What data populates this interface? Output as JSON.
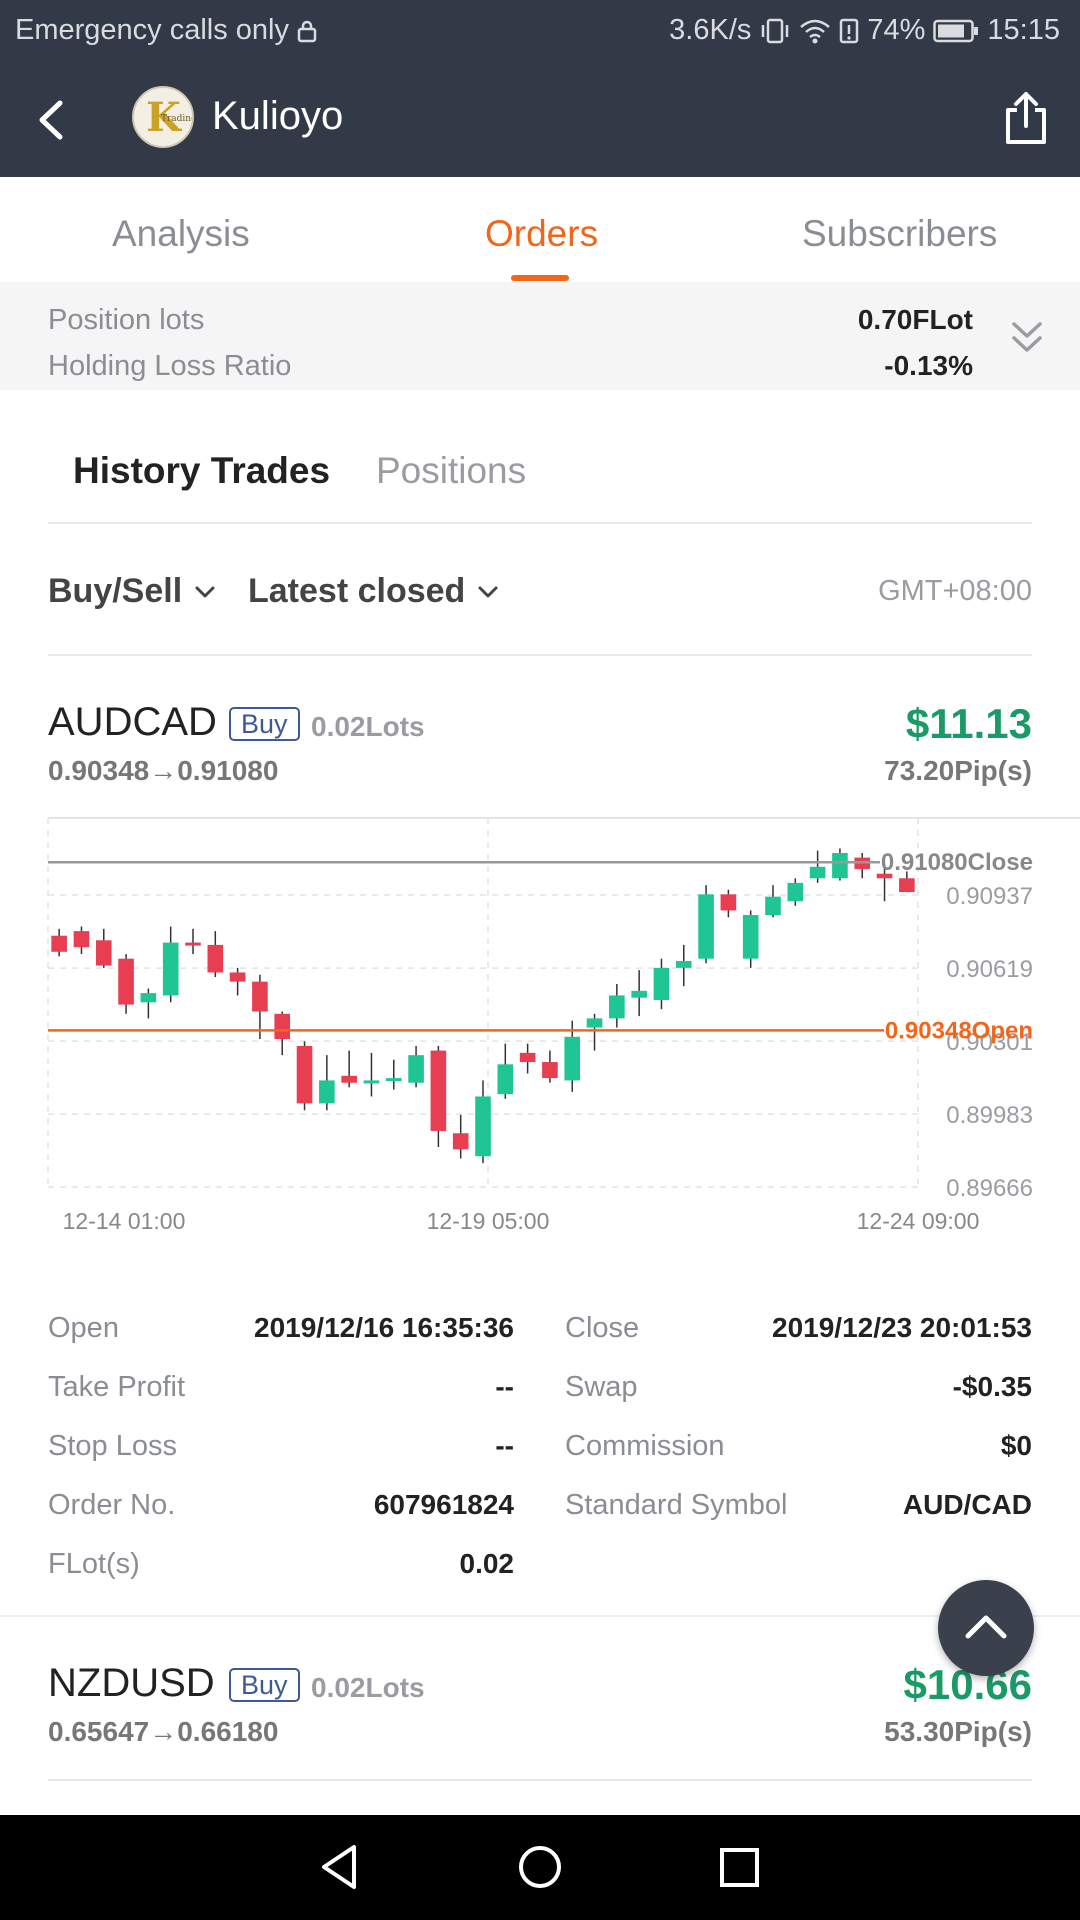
{
  "status_bar": {
    "carrier": "Emergency calls only",
    "speed": "3.6K/s",
    "battery": "74%",
    "time": "15:15"
  },
  "header": {
    "title": "Kulioyo",
    "avatar_text": "Trading"
  },
  "main_tabs": [
    {
      "label": "Analysis"
    },
    {
      "label": "Orders"
    },
    {
      "label": "Subscribers"
    }
  ],
  "summary": {
    "position_lots_label": "Position lots",
    "position_lots_value": "0.70FLot",
    "holding_loss_label": "Holding Loss Ratio",
    "holding_loss_value": "-0.13%"
  },
  "sub_tabs": [
    {
      "label": "History Trades"
    },
    {
      "label": "Positions"
    }
  ],
  "filters": {
    "direction": "Buy/Sell",
    "sort": "Latest closed",
    "timezone": "GMT+08:00"
  },
  "trades": [
    {
      "symbol": "AUDCAD",
      "side": "Buy",
      "lots": "0.02Lots",
      "profit": "$11.13",
      "price_range": "0.90348→0.91080",
      "pips": "73.20Pip(s)"
    },
    {
      "symbol": "NZDUSD",
      "side": "Buy",
      "lots": "0.02Lots",
      "profit": "$10.66",
      "price_range": "0.65647→0.66180",
      "pips": "53.30Pip(s)"
    }
  ],
  "chart_data": {
    "type": "candlestick",
    "y_ticks": [
      0.90937,
      0.90619,
      0.90301,
      0.89983,
      0.89666
    ],
    "x_ticks": [
      "12-14 01:00",
      "12-19 05:00",
      "12-24 09:00"
    ],
    "ylim": [
      0.89666,
      0.91255
    ],
    "close_line": {
      "value": 0.9108,
      "label": "0.91080Close"
    },
    "open_line": {
      "value": 0.90348,
      "label": "0.90348Open"
    },
    "colors": {
      "up": "#1fc594",
      "down": "#e83e52",
      "open_line": "#f2661b",
      "close_line": "#999999"
    },
    "candles": [
      {
        "o": 0.9076,
        "h": 0.9079,
        "l": 0.9067,
        "c": 0.9069
      },
      {
        "o": 0.9078,
        "h": 0.908,
        "l": 0.9068,
        "c": 0.9071
      },
      {
        "o": 0.9074,
        "h": 0.9079,
        "l": 0.9062,
        "c": 0.9063
      },
      {
        "o": 0.9066,
        "h": 0.9068,
        "l": 0.9042,
        "c": 0.9046
      },
      {
        "o": 0.9047,
        "h": 0.9053,
        "l": 0.904,
        "c": 0.9051
      },
      {
        "o": 0.905,
        "h": 0.908,
        "l": 0.9047,
        "c": 0.9073
      },
      {
        "o": 0.9073,
        "h": 0.9079,
        "l": 0.9068,
        "c": 0.9072
      },
      {
        "o": 0.9072,
        "h": 0.9078,
        "l": 0.9058,
        "c": 0.906
      },
      {
        "o": 0.906,
        "h": 0.9062,
        "l": 0.905,
        "c": 0.9056
      },
      {
        "o": 0.9056,
        "h": 0.9059,
        "l": 0.9031,
        "c": 0.9043
      },
      {
        "o": 0.9042,
        "h": 0.9043,
        "l": 0.9024,
        "c": 0.9031
      },
      {
        "o": 0.9028,
        "h": 0.903,
        "l": 0.9,
        "c": 0.9003
      },
      {
        "o": 0.9003,
        "h": 0.9024,
        "l": 0.9,
        "c": 0.9013
      },
      {
        "o": 0.9015,
        "h": 0.9026,
        "l": 0.901,
        "c": 0.9012
      },
      {
        "o": 0.9013,
        "h": 0.9025,
        "l": 0.9006,
        "c": 0.9013
      },
      {
        "o": 0.9013,
        "h": 0.9022,
        "l": 0.9009,
        "c": 0.9014
      },
      {
        "o": 0.9012,
        "h": 0.9028,
        "l": 0.901,
        "c": 0.9024
      },
      {
        "o": 0.9026,
        "h": 0.9028,
        "l": 0.8984,
        "c": 0.8991
      },
      {
        "o": 0.899,
        "h": 0.8998,
        "l": 0.8979,
        "c": 0.8983
      },
      {
        "o": 0.898,
        "h": 0.9013,
        "l": 0.8977,
        "c": 0.9006
      },
      {
        "o": 0.9007,
        "h": 0.9029,
        "l": 0.9005,
        "c": 0.902
      },
      {
        "o": 0.9025,
        "h": 0.9029,
        "l": 0.9016,
        "c": 0.9021
      },
      {
        "o": 0.9021,
        "h": 0.9026,
        "l": 0.9012,
        "c": 0.9014
      },
      {
        "o": 0.9013,
        "h": 0.9039,
        "l": 0.9008,
        "c": 0.9032
      },
      {
        "o": 0.9036,
        "h": 0.9042,
        "l": 0.9026,
        "c": 0.904
      },
      {
        "o": 0.904,
        "h": 0.9055,
        "l": 0.9036,
        "c": 0.905
      },
      {
        "o": 0.9049,
        "h": 0.9061,
        "l": 0.9041,
        "c": 0.9052
      },
      {
        "o": 0.9048,
        "h": 0.9066,
        "l": 0.9044,
        "c": 0.9062
      },
      {
        "o": 0.9062,
        "h": 0.9072,
        "l": 0.9054,
        "c": 0.9065
      },
      {
        "o": 0.9066,
        "h": 0.9098,
        "l": 0.9064,
        "c": 0.9094
      },
      {
        "o": 0.9094,
        "h": 0.9096,
        "l": 0.9084,
        "c": 0.9087
      },
      {
        "o": 0.9066,
        "h": 0.9087,
        "l": 0.9062,
        "c": 0.9085
      },
      {
        "o": 0.9085,
        "h": 0.9098,
        "l": 0.9084,
        "c": 0.9093
      },
      {
        "o": 0.9091,
        "h": 0.9101,
        "l": 0.9089,
        "c": 0.9099
      },
      {
        "o": 0.9101,
        "h": 0.9113,
        "l": 0.9099,
        "c": 0.9106
      },
      {
        "o": 0.9101,
        "h": 0.9114,
        "l": 0.91,
        "c": 0.9112
      },
      {
        "o": 0.911,
        "h": 0.9112,
        "l": 0.9101,
        "c": 0.9105
      },
      {
        "o": 0.9103,
        "h": 0.9107,
        "l": 0.9091,
        "c": 0.9101
      },
      {
        "o": 0.9101,
        "h": 0.9104,
        "l": 0.9095,
        "c": 0.9095
      }
    ]
  },
  "details": {
    "open_label": "Open",
    "open_value": "2019/12/16 16:35:36",
    "close_label": "Close",
    "close_value": "2019/12/23 20:01:53",
    "tp_label": "Take Profit",
    "tp_value": "--",
    "swap_label": "Swap",
    "swap_value": "-$0.35",
    "sl_label": "Stop Loss",
    "sl_value": "--",
    "commission_label": "Commission",
    "commission_value": "$0",
    "order_label": "Order No.",
    "order_value": "607961824",
    "symbol_label": "Standard Symbol",
    "symbol_value": "AUD/CAD",
    "flot_label": "FLot(s)",
    "flot_value": "0.02"
  },
  "icons": {
    "back": "back-arrow-icon",
    "share": "share-icon",
    "expand": "double-chevron-down-icon",
    "scroll_top": "chevron-up-icon",
    "nav_back": "triangle-back-icon",
    "nav_home": "circle-home-icon",
    "nav_recents": "square-recents-icon"
  }
}
